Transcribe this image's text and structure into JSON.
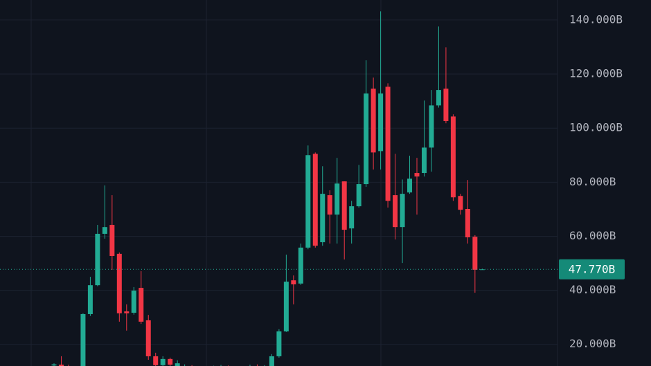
{
  "chart_data": {
    "type": "candlestick",
    "open": [
      12.2,
      12.5,
      11.8,
      11.5,
      10.8,
      31.2,
      41.9,
      60.9,
      64.2,
      53.5,
      32.2,
      31.7,
      40.9,
      28.9,
      15.6,
      12.3,
      14.6,
      11.8,
      11.2,
      11.8,
      11.4,
      11.0,
      10.8,
      11.3,
      11.6,
      11.2,
      10.9,
      11.4,
      11.8,
      11.5,
      12.0,
      15.6,
      24.8,
      43.7,
      42.5,
      55.8,
      90.5,
      57.8,
      75.2,
      68.0,
      80.3,
      62.9,
      71.1,
      79.3,
      114.6,
      91.5,
      115.3,
      75.2,
      63.4,
      76.2,
      83.4,
      83.4,
      92.8,
      108.4,
      114.6,
      104.3,
      74.9,
      70.1,
      59.8,
      47.7
    ],
    "high": [
      13.0,
      15.6,
      12.5,
      12.0,
      31.5,
      45.0,
      64.2,
      78.8,
      75.2,
      54.0,
      34.8,
      41.2,
      47.1,
      30.9,
      16.9,
      15.6,
      15.1,
      14.1,
      12.6,
      12.3,
      12.0,
      11.8,
      12.1,
      12.4,
      12.2,
      11.9,
      12.0,
      12.5,
      12.6,
      12.3,
      16.4,
      25.6,
      53.2,
      45.5,
      57.3,
      93.6,
      91.0,
      85.9,
      77.0,
      89.0,
      80.3,
      73.1,
      86.4,
      125.1,
      118.7,
      143.2,
      116.6,
      90.5,
      81.0,
      89.8,
      89.0,
      110.2,
      114.1,
      137.6,
      129.9,
      105.1,
      75.7,
      80.8,
      60.4,
      48.0
    ],
    "low": [
      11.0,
      11.0,
      10.5,
      10.0,
      10.5,
      30.5,
      41.5,
      59.1,
      47.6,
      28.4,
      25.1,
      31.0,
      27.6,
      14.3,
      10.5,
      11.8,
      11.5,
      10.5,
      10.5,
      10.8,
      10.4,
      10.2,
      10.3,
      10.6,
      10.7,
      10.5,
      10.3,
      10.6,
      10.9,
      10.7,
      10.5,
      15.1,
      24.6,
      34.8,
      42.0,
      55.2,
      55.8,
      56.5,
      57.3,
      57.3,
      51.4,
      57.3,
      70.6,
      78.3,
      84.7,
      84.7,
      70.6,
      58.8,
      50.1,
      75.7,
      68.0,
      82.1,
      83.9,
      107.6,
      101.8,
      73.1,
      68.0,
      57.3,
      39.1,
      47.6
    ],
    "close": [
      12.6,
      11.8,
      11.5,
      11.2,
      31.2,
      41.9,
      60.9,
      63.4,
      52.7,
      31.5,
      31.5,
      39.9,
      28.4,
      15.6,
      12.3,
      14.6,
      12.5,
      13.0,
      11.8,
      11.4,
      11.0,
      10.8,
      11.3,
      11.6,
      11.2,
      10.9,
      11.4,
      11.8,
      11.5,
      12.0,
      15.6,
      24.8,
      43.2,
      42.2,
      55.8,
      90.0,
      56.5,
      75.7,
      68.0,
      79.5,
      62.4,
      71.1,
      79.3,
      112.8,
      91.0,
      112.8,
      73.1,
      63.4,
      75.7,
      81.3,
      82.1,
      92.8,
      108.4,
      114.1,
      102.6,
      74.4,
      69.8,
      59.6,
      47.6,
      47.77
    ],
    "up_color": "#22ab94",
    "down_color": "#f23645",
    "ylim": [
      12,
      147.4
    ],
    "yticks": [
      {
        "value": 20,
        "label": "20.000B"
      },
      {
        "value": 40,
        "label": "40.000B"
      },
      {
        "value": 60,
        "label": "60.000B"
      },
      {
        "value": 80,
        "label": "80.000B"
      },
      {
        "value": 100,
        "label": "100.000B"
      },
      {
        "value": 120,
        "label": "120.000B"
      },
      {
        "value": 140,
        "label": "140.000B"
      }
    ],
    "grid": true,
    "last_price": {
      "value": 47.77,
      "label": "47.770B"
    }
  }
}
